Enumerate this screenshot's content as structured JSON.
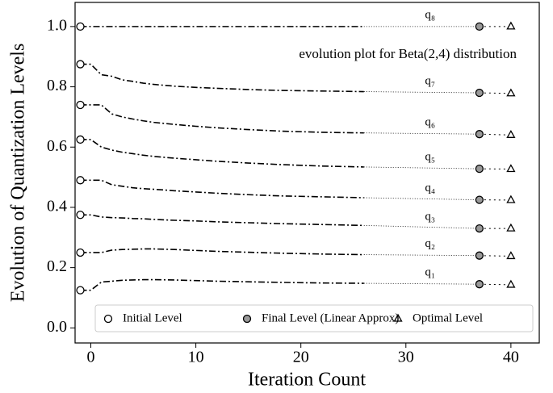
{
  "chart_data": {
    "type": "line",
    "annotation": "evolution plot for Beta(2,4) distribution",
    "xlabel": "Iteration Count",
    "ylabel": "Evolution of Quantization Levels",
    "legend_labels": [
      "Initial Level",
      "Final Level (Linear Approx)",
      "Optimal Level"
    ],
    "legend": "lower center",
    "color": "#000000",
    "x": [
      -1,
      0,
      1,
      2,
      3,
      4,
      5,
      6,
      8,
      10,
      12,
      15,
      18,
      22,
      26
    ],
    "final_x": 37,
    "optimal_x": 40,
    "series": [
      {
        "name": "q₁",
        "values": [
          0.125,
          0.125,
          0.152,
          0.155,
          0.158,
          0.159,
          0.16,
          0.16,
          0.159,
          0.157,
          0.155,
          0.153,
          0.151,
          0.149,
          0.148
        ],
        "final": 0.145,
        "optimal": 0.143
      },
      {
        "name": "q₂",
        "values": [
          0.25,
          0.25,
          0.25,
          0.258,
          0.26,
          0.261,
          0.262,
          0.262,
          0.26,
          0.257,
          0.254,
          0.251,
          0.248,
          0.245,
          0.243
        ],
        "final": 0.24,
        "optimal": 0.238
      },
      {
        "name": "q₃",
        "values": [
          0.375,
          0.375,
          0.368,
          0.366,
          0.365,
          0.363,
          0.362,
          0.36,
          0.357,
          0.355,
          0.352,
          0.349,
          0.346,
          0.343,
          0.34
        ],
        "final": 0.33,
        "optimal": 0.33
      },
      {
        "name": "q₄",
        "values": [
          0.49,
          0.49,
          0.49,
          0.475,
          0.47,
          0.465,
          0.462,
          0.46,
          0.455,
          0.451,
          0.447,
          0.442,
          0.438,
          0.435,
          0.432
        ],
        "final": 0.425,
        "optimal": 0.424
      },
      {
        "name": "q₅",
        "values": [
          0.625,
          0.625,
          0.6,
          0.59,
          0.583,
          0.578,
          0.573,
          0.569,
          0.563,
          0.558,
          0.553,
          0.547,
          0.542,
          0.537,
          0.534
        ],
        "final": 0.528,
        "optimal": 0.527
      },
      {
        "name": "q₆",
        "values": [
          0.74,
          0.74,
          0.74,
          0.71,
          0.7,
          0.693,
          0.687,
          0.682,
          0.675,
          0.669,
          0.664,
          0.658,
          0.653,
          0.649,
          0.647
        ],
        "final": 0.643,
        "optimal": 0.64
      },
      {
        "name": "q₇",
        "values": [
          0.875,
          0.875,
          0.84,
          0.835,
          0.823,
          0.818,
          0.812,
          0.808,
          0.802,
          0.798,
          0.795,
          0.791,
          0.788,
          0.786,
          0.784
        ],
        "final": 0.78,
        "optimal": 0.778
      },
      {
        "name": "q₈",
        "values": [
          1,
          1,
          1,
          1,
          1,
          1,
          1,
          1,
          1,
          1,
          1,
          1,
          1,
          1,
          1
        ],
        "final": 1,
        "optimal": 1
      }
    ],
    "xlim": [
      -1.5,
      42.7
    ],
    "ylim": [
      -0.05,
      1.08
    ],
    "xticks": [
      0,
      10,
      20,
      30,
      40
    ],
    "yticks": [
      {
        "value": 0,
        "label": "0.0"
      },
      0.2,
      0.4,
      0.6,
      0.8,
      {
        "value": 1,
        "label": "1.0"
      }
    ]
  }
}
